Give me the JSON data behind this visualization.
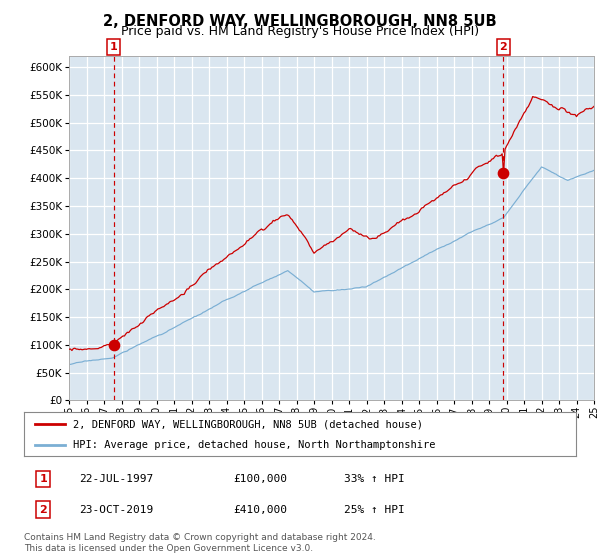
{
  "title": "2, DENFORD WAY, WELLINGBOROUGH, NN8 5UB",
  "subtitle": "Price paid vs. HM Land Registry's House Price Index (HPI)",
  "title_fontsize": 10.5,
  "subtitle_fontsize": 9,
  "plot_bg_color": "#dae6f0",
  "red_line_color": "#cc0000",
  "blue_line_color": "#7bafd4",
  "grid_color": "#ffffff",
  "ylim": [
    0,
    620000
  ],
  "yticks": [
    0,
    50000,
    100000,
    150000,
    200000,
    250000,
    300000,
    350000,
    400000,
    450000,
    500000,
    550000,
    600000
  ],
  "xstart_year": 1995,
  "xend_year": 2025,
  "transaction1_year": 1997.55,
  "transaction1_value": 100000,
  "transaction2_year": 2019.81,
  "transaction2_value": 410000,
  "transaction1_date": "22-JUL-1997",
  "transaction1_price": "£100,000",
  "transaction1_hpi": "33% ↑ HPI",
  "transaction2_date": "23-OCT-2019",
  "transaction2_price": "£410,000",
  "transaction2_hpi": "25% ↑ HPI",
  "legend_line1": "2, DENFORD WAY, WELLINGBOROUGH, NN8 5UB (detached house)",
  "legend_line2": "HPI: Average price, detached house, North Northamptonshire",
  "footnote": "Contains HM Land Registry data © Crown copyright and database right 2024.\nThis data is licensed under the Open Government Licence v3.0."
}
